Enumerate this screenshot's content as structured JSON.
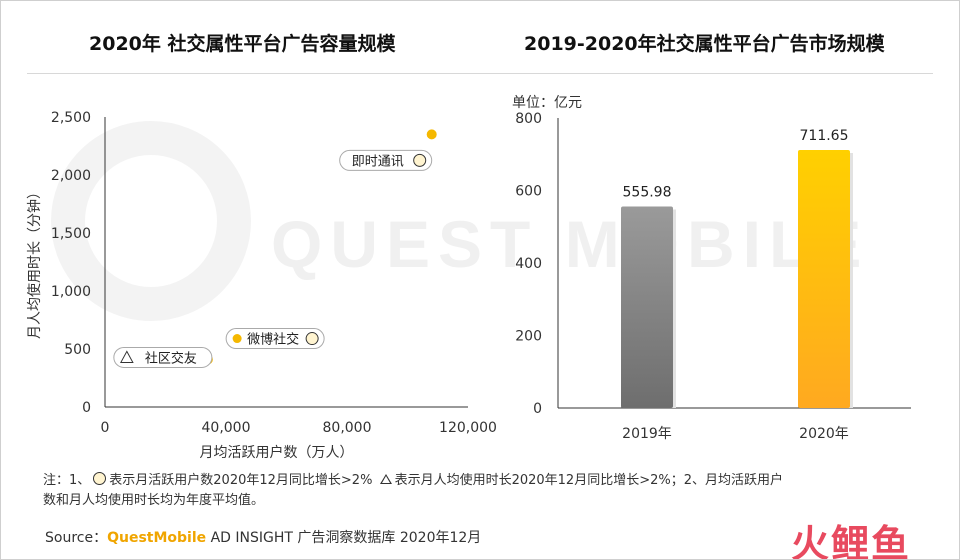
{
  "left_title": "2020年 社交属性平台广告容量规模",
  "right_title": "2019-2020年社交属性平台广告市场规模",
  "watermark": "QUEST MOBILE",
  "colors": {
    "point": "#f5b800",
    "bar_2019": "#8a8a8a",
    "bar_2020": "#ffc000",
    "axis": "#333333",
    "label_bg": "#ffffff",
    "marker_fill": "#fff4d0"
  },
  "chart_data": [
    {
      "type": "scatter",
      "title": "2020年 社交属性平台广告容量规模",
      "xlabel": "月均活跃用户数（万人）",
      "ylabel": "月人均使用时长（分钟）",
      "xlim": [
        0,
        120000
      ],
      "ylim": [
        0,
        2500
      ],
      "xticks": [
        0,
        40000,
        80000,
        120000
      ],
      "xtick_labels": [
        "0",
        "40,000",
        "80,000",
        "120,000"
      ],
      "yticks": [
        0,
        500,
        1000,
        1500,
        2000,
        2500
      ],
      "ytick_labels": [
        "0",
        "500",
        "1,000",
        "1,500",
        "2,000",
        "2,500"
      ],
      "points": [
        {
          "name": "即时通讯",
          "x": 108000,
          "y": 2350,
          "marker": "circle"
        },
        {
          "name": "微博社交",
          "x": 45000,
          "y": 590,
          "marker": "circle"
        },
        {
          "name": "社区交友",
          "x": 34000,
          "y": 410,
          "marker": "triangle"
        }
      ]
    },
    {
      "type": "bar",
      "title": "2019-2020年社交属性平台广告市场规模",
      "unit": "单位：亿元",
      "categories": [
        "2019年",
        "2020年"
      ],
      "values": [
        555.98,
        711.65
      ],
      "value_labels": [
        "555.98",
        "711.65"
      ],
      "ylim": [
        0,
        800
      ],
      "yticks": [
        0,
        200,
        400,
        600,
        800
      ],
      "ytick_labels": [
        "0",
        "200",
        "400",
        "600",
        "800"
      ]
    }
  ],
  "note": {
    "line1_a": "注：1、",
    "line1_b": "表示月活跃用户数2020年12月同比增长>2%",
    "line1_c": "表示月人均使用时长2020年12月同比增长>2%；2、月均活跃用户",
    "line2": "数和月人均使用时长均为年度平均值。"
  },
  "source": {
    "prefix": "Source：",
    "brand": "QuestMobile",
    "rest": " AD INSIGHT 广告洞察数据库 2020年12月"
  },
  "logo_text": "火鲤鱼"
}
